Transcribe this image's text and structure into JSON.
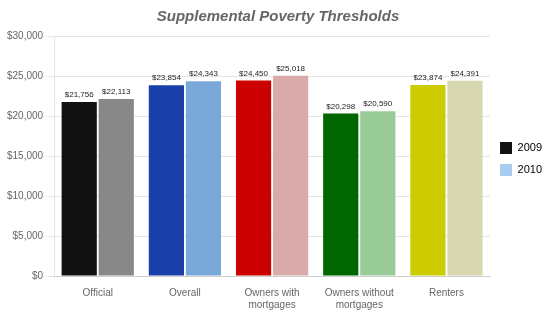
{
  "chart_data": {
    "type": "bar",
    "title": "Supplemental Poverty Thresholds",
    "categories": [
      "Official",
      "Overall",
      "Owners with\nmortgages",
      "Owners without\nmortgages",
      "Renters"
    ],
    "series": [
      {
        "name": "2009",
        "color": "#111111",
        "colors": [
          "#111111",
          "#1a3faa",
          "#cc0000",
          "#006600",
          "#cccc00"
        ],
        "values": [
          21756,
          23854,
          24450,
          20298,
          23874
        ],
        "value_labels": [
          "$21,756",
          "$23,854",
          "$24,450",
          "$20,298",
          "$23,874"
        ]
      },
      {
        "name": "2010",
        "color": "#aaccee",
        "colors": [
          "#888888",
          "#7aa8d8",
          "#d8aaaa",
          "#99cc99",
          "#d8d8b0"
        ],
        "values": [
          22113,
          24343,
          25018,
          20590,
          24391
        ],
        "value_labels": [
          "$22,113",
          "$24,343",
          "$25,018",
          "$20,590",
          "$24,391"
        ]
      }
    ],
    "ylim": [
      0,
      30000
    ],
    "yticks": [
      {
        "value": 0,
        "label": "$0"
      },
      {
        "value": 5000,
        "label": "$5,000"
      },
      {
        "value": 10000,
        "label": "$10,000"
      },
      {
        "value": 15000,
        "label": "$15,000"
      },
      {
        "value": 20000,
        "label": "$20,000"
      },
      {
        "value": 25000,
        "label": "$25,000"
      },
      {
        "value": 30000,
        "label": "$30,000"
      }
    ],
    "grid": true,
    "legend": "right",
    "data_labels": true
  }
}
